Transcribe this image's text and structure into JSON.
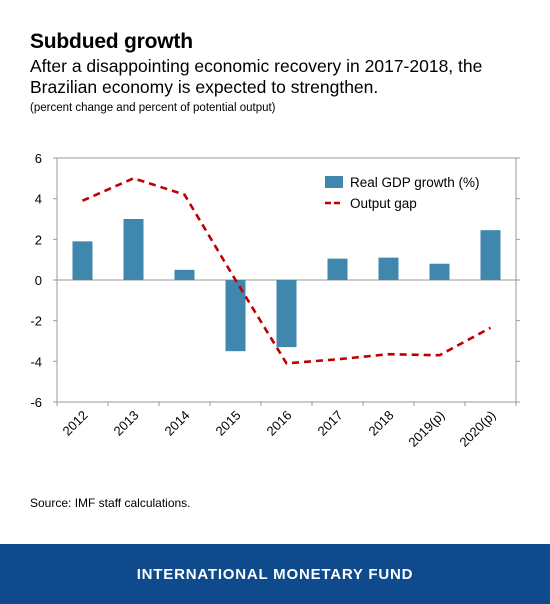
{
  "title": "Subdued growth",
  "subtitle": "After a disappointing economic recovery in 2017-2018, the Brazilian economy is expected to strengthen.",
  "note": "(percent change and percent of potential output)",
  "source": "Source: IMF staff calculations.",
  "footer": "INTERNATIONAL MONETARY FUND",
  "colors": {
    "bar": "#3f87ad",
    "line": "#c00000",
    "footer": "#0f4a8c"
  },
  "chart_data": {
    "type": "bar",
    "categories": [
      "2012",
      "2013",
      "2014",
      "2015",
      "2016",
      "2017",
      "2018",
      "2019(p)",
      "2020(p)"
    ],
    "series": [
      {
        "name": "Real GDP growth (%)",
        "type": "bar",
        "values": [
          1.9,
          3.0,
          0.5,
          -3.5,
          -3.3,
          1.05,
          1.1,
          0.8,
          2.45
        ]
      },
      {
        "name": "Output gap",
        "type": "line",
        "style": "dashed",
        "values": [
          3.9,
          5.0,
          4.2,
          0.0,
          -4.1,
          -3.9,
          -3.65,
          -3.7,
          -2.35
        ]
      }
    ],
    "yticks": [
      "6",
      "4",
      "2",
      "0",
      "-2",
      "-4",
      "-6"
    ],
    "ylim": [
      -6,
      6
    ],
    "legend": "top-right",
    "grid": false
  }
}
